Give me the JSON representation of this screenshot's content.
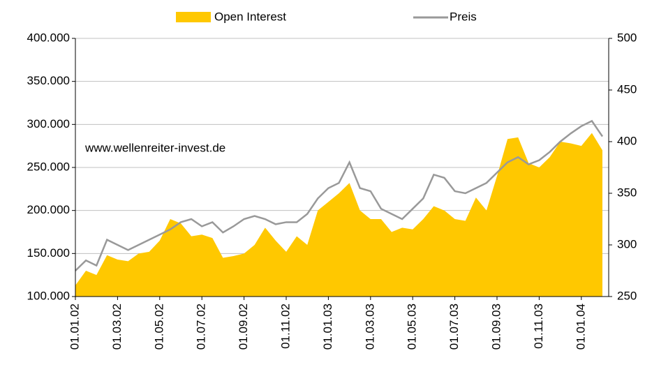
{
  "chart_data": {
    "type": "area_line",
    "annotation": "www.wellenreiter-invest.de",
    "categories": [
      "01.01.02",
      null,
      null,
      null,
      "01.03.02",
      null,
      null,
      null,
      "01.05.02",
      null,
      null,
      null,
      "01.07.02",
      null,
      null,
      null,
      "01.09.02",
      null,
      null,
      null,
      "01.11.02",
      null,
      null,
      null,
      "01.01.03",
      null,
      null,
      null,
      "01.03.03",
      null,
      null,
      null,
      "01.05.03",
      null,
      null,
      null,
      "01.07.03",
      null,
      null,
      null,
      "01.09.03",
      null,
      null,
      null,
      "01.11.03",
      null,
      null,
      null,
      "01.01.04",
      null,
      null
    ],
    "series": [
      {
        "name": "Open Interest",
        "color": "#ffc800",
        "values": [
          113000,
          130000,
          125000,
          148000,
          143000,
          141000,
          150000,
          152000,
          165000,
          190000,
          185000,
          170000,
          172000,
          168000,
          145000,
          147000,
          150000,
          160000,
          180000,
          165000,
          152000,
          170000,
          160000,
          200000,
          210000,
          220000,
          232000,
          200000,
          190000,
          190000,
          175000,
          180000,
          178000,
          190000,
          205000,
          200000,
          190000,
          188000,
          215000,
          200000,
          240000,
          283000,
          285000,
          255000,
          250000,
          262000,
          280000,
          278000,
          275000,
          290000,
          270000
        ]
      },
      {
        "name": "Preis",
        "color": "#999999",
        "axis": "y2",
        "values": [
          275,
          285,
          280,
          305,
          300,
          295,
          300,
          305,
          310,
          315,
          322,
          325,
          318,
          322,
          312,
          318,
          325,
          328,
          325,
          320,
          322,
          322,
          330,
          345,
          355,
          360,
          380,
          355,
          352,
          335,
          330,
          325,
          335,
          345,
          368,
          365,
          352,
          350,
          355,
          360,
          370,
          380,
          385,
          378,
          382,
          390,
          400,
          408,
          415,
          420,
          405
        ]
      }
    ],
    "ylim": [
      100000,
      400000
    ],
    "yticks": [
      {
        "value": 100000,
        "label": "100.000"
      },
      {
        "value": 150000,
        "label": "150.000"
      },
      {
        "value": 200000,
        "label": "200.000"
      },
      {
        "value": 250000,
        "label": "250.000"
      },
      {
        "value": 300000,
        "label": "300.000"
      },
      {
        "value": 350000,
        "label": "350.000"
      },
      {
        "value": 400000,
        "label": "400.000"
      }
    ],
    "y2lim": [
      250,
      500
    ],
    "y2ticks": [
      250,
      300,
      350,
      400,
      450,
      500
    ],
    "grid": true
  }
}
